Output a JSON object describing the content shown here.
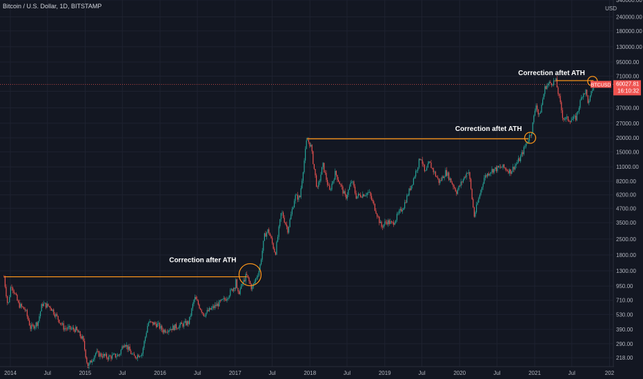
{
  "header": {
    "symbol_line": "Bitcoin / U.S. Dollar, 1D, BITSTAMP"
  },
  "price_axis": {
    "currency": "USD",
    "ticks": [
      340000,
      240000,
      180000,
      130000,
      95000,
      71000,
      52000,
      37000,
      27000,
      20000,
      15000,
      11000,
      8200,
      6200,
      4700,
      3500,
      2500,
      1800,
      1300,
      950,
      710,
      530,
      390,
      290,
      218
    ],
    "log_scale": true,
    "range": [
      200,
      400000
    ]
  },
  "time_axis": {
    "ticks": [
      {
        "label": "2014",
        "date": "2014-01-01"
      },
      {
        "label": "Jul",
        "date": "2014-07-01"
      },
      {
        "label": "2015",
        "date": "2015-01-01"
      },
      {
        "label": "Jul",
        "date": "2015-07-01"
      },
      {
        "label": "2016",
        "date": "2016-01-01"
      },
      {
        "label": "Jul",
        "date": "2016-07-01"
      },
      {
        "label": "2017",
        "date": "2017-01-01"
      },
      {
        "label": "Jul",
        "date": "2017-07-01"
      },
      {
        "label": "2018",
        "date": "2018-01-01"
      },
      {
        "label": "Jul",
        "date": "2018-07-01"
      },
      {
        "label": "2019",
        "date": "2019-01-01"
      },
      {
        "label": "Jul",
        "date": "2019-07-01"
      },
      {
        "label": "2020",
        "date": "2020-01-01"
      },
      {
        "label": "Jul",
        "date": "2020-07-01"
      },
      {
        "label": "2021",
        "date": "2021-01-01"
      },
      {
        "label": "Jul",
        "date": "2021-07-01"
      },
      {
        "label": "202",
        "date": "2022-01-01"
      }
    ]
  },
  "current_price": {
    "ticker": "BTCUSD",
    "price": "60027.81",
    "countdown": "16:10:32",
    "value": 60027.81
  },
  "colors": {
    "background": "#131722",
    "up": "#26a69a",
    "down": "#ef5350",
    "annotation": "#f7931a",
    "grid": "#1e2230"
  },
  "chart_data": {
    "type": "candlestick",
    "title": "Bitcoin / U.S. Dollar, 1D, BITSTAMP",
    "y_scale": "log",
    "grid": true,
    "price_series": [
      [
        "2013-12-01",
        1150
      ],
      [
        "2013-12-20",
        620
      ],
      [
        "2014-01-05",
        1000
      ],
      [
        "2014-02-10",
        650
      ],
      [
        "2014-03-15",
        580
      ],
      [
        "2014-04-10",
        400
      ],
      [
        "2014-05-15",
        450
      ],
      [
        "2014-06-05",
        660
      ],
      [
        "2014-07-15",
        620
      ],
      [
        "2014-09-20",
        400
      ],
      [
        "2014-11-15",
        390
      ],
      [
        "2014-12-20",
        320
      ],
      [
        "2015-01-14",
        180
      ],
      [
        "2015-02-20",
        240
      ],
      [
        "2015-04-20",
        220
      ],
      [
        "2015-06-15",
        230
      ],
      [
        "2015-07-10",
        300
      ],
      [
        "2015-08-25",
        220
      ],
      [
        "2015-10-05",
        240
      ],
      [
        "2015-11-04",
        450
      ],
      [
        "2015-12-20",
        430
      ],
      [
        "2016-01-15",
        380
      ],
      [
        "2016-03-15",
        410
      ],
      [
        "2016-05-20",
        450
      ],
      [
        "2016-06-17",
        750
      ],
      [
        "2016-08-02",
        530
      ],
      [
        "2016-09-15",
        610
      ],
      [
        "2016-11-15",
        730
      ],
      [
        "2016-12-31",
        960
      ],
      [
        "2017-01-05",
        1130
      ],
      [
        "2017-01-12",
        780
      ],
      [
        "2017-02-25",
        1190
      ],
      [
        "2017-03-24",
        900
      ],
      [
        "2017-04-30",
        1350
      ],
      [
        "2017-05-25",
        2700
      ],
      [
        "2017-06-12",
        3000
      ],
      [
        "2017-07-16",
        1850
      ],
      [
        "2017-08-15",
        4400
      ],
      [
        "2017-09-15",
        3000
      ],
      [
        "2017-10-20",
        6000
      ],
      [
        "2017-11-12",
        5800
      ],
      [
        "2017-12-17",
        19600
      ],
      [
        "2018-01-05",
        17000
      ],
      [
        "2018-02-06",
        6800
      ],
      [
        "2018-03-05",
        11500
      ],
      [
        "2018-04-06",
        6600
      ],
      [
        "2018-05-05",
        9800
      ],
      [
        "2018-06-24",
        5800
      ],
      [
        "2018-07-25",
        8300
      ],
      [
        "2018-08-14",
        6000
      ],
      [
        "2018-10-15",
        6500
      ],
      [
        "2018-11-20",
        4400
      ],
      [
        "2018-12-15",
        3200
      ],
      [
        "2019-01-10",
        3600
      ],
      [
        "2019-02-07",
        3400
      ],
      [
        "2019-04-02",
        4900
      ],
      [
        "2019-05-15",
        8000
      ],
      [
        "2019-06-26",
        13800
      ],
      [
        "2019-07-16",
        9500
      ],
      [
        "2019-08-06",
        12000
      ],
      [
        "2019-09-24",
        8000
      ],
      [
        "2019-10-26",
        10000
      ],
      [
        "2019-12-17",
        6600
      ],
      [
        "2020-02-13",
        10400
      ],
      [
        "2020-03-12",
        4000
      ],
      [
        "2020-04-29",
        8800
      ],
      [
        "2020-06-01",
        10200
      ],
      [
        "2020-07-27",
        11000
      ],
      [
        "2020-09-05",
        10000
      ],
      [
        "2020-10-21",
        13000
      ],
      [
        "2020-11-30",
        19500
      ],
      [
        "2020-12-17",
        23000
      ],
      [
        "2021-01-08",
        41000
      ],
      [
        "2021-01-22",
        30000
      ],
      [
        "2021-02-21",
        57000
      ],
      [
        "2021-03-13",
        61000
      ],
      [
        "2021-04-14",
        64800
      ],
      [
        "2021-05-19",
        30000
      ],
      [
        "2021-06-22",
        29000
      ],
      [
        "2021-07-20",
        29800
      ],
      [
        "2021-08-23",
        50000
      ],
      [
        "2021-09-07",
        52000
      ],
      [
        "2021-09-21",
        40000
      ],
      [
        "2021-10-15",
        60027.81
      ]
    ],
    "reference_lines": [
      {
        "price": 1150,
        "from": "2013-12-01",
        "to": "2017-03-01"
      },
      {
        "price": 19600,
        "from": "2017-12-17",
        "to": "2020-12-01"
      },
      {
        "price": 64800,
        "from": "2021-04-14",
        "to": "2021-10-15"
      }
    ],
    "annotations": [
      {
        "text": "Correction after ATH",
        "date": "2017-03-15",
        "price": 1200
      },
      {
        "text": "Correction aftet ATH",
        "date": "2020-12-10",
        "price": 20000
      },
      {
        "text": "Correction aftet ATH",
        "date": "2021-10-10",
        "price": 64000
      }
    ]
  }
}
